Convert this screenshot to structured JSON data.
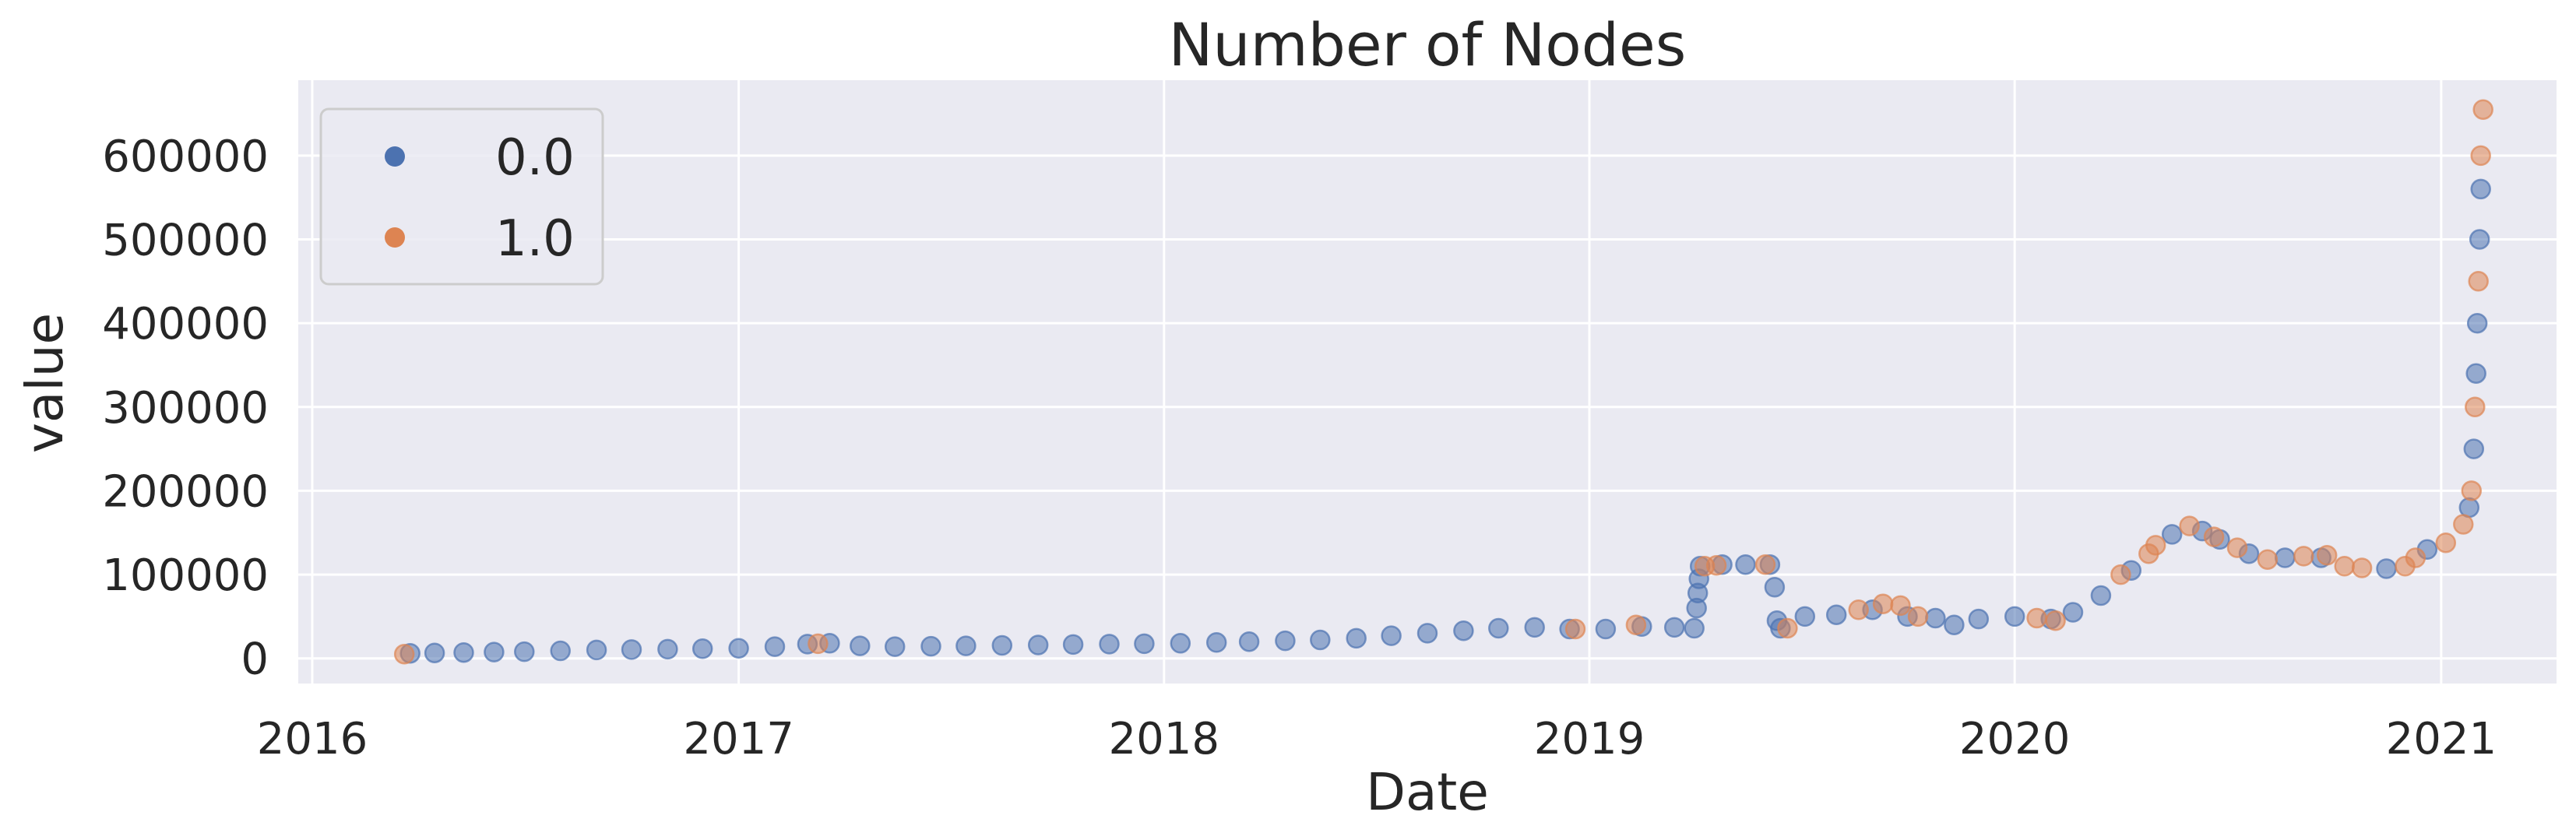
{
  "chart_data": {
    "type": "scatter",
    "title": "Number of Nodes",
    "xlabel": "Date",
    "ylabel": "value",
    "x_axis_type": "date",
    "xlim": [
      "2015-12-20",
      "2021-04-10"
    ],
    "ylim": [
      -30000,
      690000
    ],
    "x_ticks": [
      "2016",
      "2017",
      "2018",
      "2019",
      "2020",
      "2021"
    ],
    "y_ticks": [
      "0",
      "100000",
      "200000",
      "300000",
      "400000",
      "500000",
      "600000"
    ],
    "grid": true,
    "background": "#eaeaf2",
    "legend": {
      "position": "top-left",
      "entries": [
        {
          "label": "0.0",
          "color": "#4c72b0"
        },
        {
          "label": "1.0",
          "color": "#dd8452"
        }
      ]
    },
    "series": [
      {
        "name": "0.0",
        "color": "#4c72b0",
        "points": [
          [
            "2016-03-25",
            6000
          ],
          [
            "2016-04-15",
            6500
          ],
          [
            "2016-05-10",
            7000
          ],
          [
            "2016-06-05",
            7500
          ],
          [
            "2016-07-01",
            8000
          ],
          [
            "2016-08-01",
            9000
          ],
          [
            "2016-09-01",
            10000
          ],
          [
            "2016-10-01",
            10500
          ],
          [
            "2016-11-01",
            11000
          ],
          [
            "2016-12-01",
            11500
          ],
          [
            "2017-01-01",
            12000
          ],
          [
            "2017-02-01",
            14000
          ],
          [
            "2017-03-01",
            17000
          ],
          [
            "2017-03-20",
            18000
          ],
          [
            "2017-04-15",
            15000
          ],
          [
            "2017-05-15",
            14000
          ],
          [
            "2017-06-15",
            14500
          ],
          [
            "2017-07-15",
            15000
          ],
          [
            "2017-08-15",
            15500
          ],
          [
            "2017-09-15",
            16000
          ],
          [
            "2017-10-15",
            16500
          ],
          [
            "2017-11-15",
            17000
          ],
          [
            "2017-12-15",
            17500
          ],
          [
            "2018-01-15",
            18000
          ],
          [
            "2018-02-15",
            19000
          ],
          [
            "2018-03-15",
            20000
          ],
          [
            "2018-04-15",
            21000
          ],
          [
            "2018-05-15",
            22000
          ],
          [
            "2018-06-15",
            24000
          ],
          [
            "2018-07-15",
            27000
          ],
          [
            "2018-08-15",
            30000
          ],
          [
            "2018-09-15",
            33000
          ],
          [
            "2018-10-15",
            36000
          ],
          [
            "2018-11-15",
            37000
          ],
          [
            "2018-12-15",
            35000
          ],
          [
            "2019-01-15",
            35000
          ],
          [
            "2019-02-15",
            38000
          ],
          [
            "2019-03-15",
            37000
          ],
          [
            "2019-04-01",
            36000
          ],
          [
            "2019-04-03",
            60000
          ],
          [
            "2019-04-04",
            78000
          ],
          [
            "2019-04-05",
            95000
          ],
          [
            "2019-04-06",
            110000
          ],
          [
            "2019-04-25",
            112000
          ],
          [
            "2019-05-15",
            112000
          ],
          [
            "2019-06-05",
            112000
          ],
          [
            "2019-06-09",
            85000
          ],
          [
            "2019-06-11",
            45000
          ],
          [
            "2019-06-14",
            36000
          ],
          [
            "2019-07-05",
            50000
          ],
          [
            "2019-08-01",
            52000
          ],
          [
            "2019-09-01",
            58000
          ],
          [
            "2019-10-01",
            50000
          ],
          [
            "2019-10-25",
            48000
          ],
          [
            "2019-11-10",
            40000
          ],
          [
            "2019-12-01",
            47000
          ],
          [
            "2020-01-01",
            50000
          ],
          [
            "2020-02-01",
            47000
          ],
          [
            "2020-02-20",
            55000
          ],
          [
            "2020-03-15",
            75000
          ],
          [
            "2020-04-10",
            105000
          ],
          [
            "2020-05-15",
            148000
          ],
          [
            "2020-06-10",
            152000
          ],
          [
            "2020-06-25",
            142000
          ],
          [
            "2020-07-20",
            125000
          ],
          [
            "2020-08-20",
            120000
          ],
          [
            "2020-09-20",
            120000
          ],
          [
            "2020-11-15",
            107000
          ],
          [
            "2020-12-20",
            130000
          ],
          [
            "2021-01-25",
            180000
          ],
          [
            "2021-01-29",
            250000
          ],
          [
            "2021-01-31",
            340000
          ],
          [
            "2021-02-01",
            400000
          ],
          [
            "2021-02-03",
            500000
          ],
          [
            "2021-02-04",
            560000
          ]
        ]
      },
      {
        "name": "1.0",
        "color": "#dd8452",
        "points": [
          [
            "2016-03-20",
            5000
          ],
          [
            "2017-03-10",
            17500
          ],
          [
            "2018-12-20",
            35000
          ],
          [
            "2019-02-10",
            40000
          ],
          [
            "2019-04-10",
            110000
          ],
          [
            "2019-04-20",
            111000
          ],
          [
            "2019-06-01",
            112000
          ],
          [
            "2019-06-20",
            36000
          ],
          [
            "2019-08-20",
            58000
          ],
          [
            "2019-09-10",
            65000
          ],
          [
            "2019-09-25",
            63000
          ],
          [
            "2019-10-10",
            50000
          ],
          [
            "2020-01-20",
            48000
          ],
          [
            "2020-02-05",
            45000
          ],
          [
            "2020-04-01",
            100000
          ],
          [
            "2020-04-25",
            125000
          ],
          [
            "2020-05-01",
            135000
          ],
          [
            "2020-05-30",
            158000
          ],
          [
            "2020-06-20",
            145000
          ],
          [
            "2020-07-10",
            132000
          ],
          [
            "2020-08-05",
            118000
          ],
          [
            "2020-09-05",
            122000
          ],
          [
            "2020-09-25",
            123000
          ],
          [
            "2020-10-10",
            110000
          ],
          [
            "2020-10-25",
            108000
          ],
          [
            "2020-12-01",
            110000
          ],
          [
            "2020-12-10",
            120000
          ],
          [
            "2021-01-05",
            138000
          ],
          [
            "2021-01-20",
            160000
          ],
          [
            "2021-01-27",
            200000
          ],
          [
            "2021-01-30",
            300000
          ],
          [
            "2021-02-02",
            450000
          ],
          [
            "2021-02-04",
            600000
          ],
          [
            "2021-02-06",
            655000
          ]
        ]
      }
    ]
  }
}
